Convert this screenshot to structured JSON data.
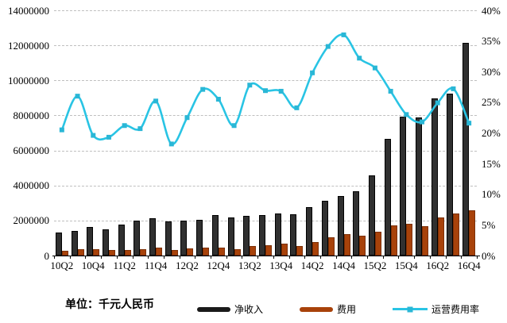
{
  "chart_data": {
    "type": "combo",
    "title": "",
    "footnote": "单位：千元人民币",
    "categories": [
      "10Q2",
      "10Q3",
      "10Q4",
      "11Q1",
      "11Q2",
      "11Q3",
      "11Q4",
      "12Q1",
      "12Q2",
      "12Q3",
      "12Q4",
      "13Q1",
      "13Q2",
      "13Q3",
      "13Q4",
      "14Q1",
      "14Q2",
      "14Q3",
      "14Q4",
      "15Q1",
      "15Q2",
      "15Q3",
      "15Q4",
      "16Q1",
      "16Q2",
      "16Q3",
      "16Q4"
    ],
    "x_labels_shown": [
      "10Q2",
      "10Q4",
      "11Q2",
      "11Q4",
      "12Q2",
      "12Q4",
      "13Q2",
      "13Q4",
      "14Q2",
      "14Q4",
      "15Q2",
      "15Q4",
      "16Q2",
      "16Q4"
    ],
    "series": [
      {
        "name": "净收入",
        "type": "bar",
        "axis": "left",
        "color": "#303030",
        "border_color": "#000000",
        "values": [
          1300000,
          1400000,
          1620000,
          1510000,
          1750000,
          2000000,
          2110000,
          1960000,
          2000000,
          2050000,
          2290000,
          2160000,
          2260000,
          2330000,
          2410000,
          2370000,
          2760000,
          3120000,
          3420000,
          3660000,
          4560000,
          6670000,
          7930000,
          7900000,
          8960000,
          9230000,
          12150000
        ]
      },
      {
        "name": "费用",
        "type": "bar",
        "axis": "left",
        "color": "#a8420a",
        "border_color": "#7c3007",
        "values": [
          270000,
          340000,
          360000,
          310000,
          330000,
          360000,
          450000,
          330000,
          400000,
          450000,
          460000,
          370000,
          540000,
          610000,
          660000,
          540000,
          770000,
          1040000,
          1220000,
          1140000,
          1370000,
          1700000,
          1790000,
          1670000,
          2190000,
          2420000,
          2570000
        ]
      },
      {
        "name": "运营费用率",
        "type": "line",
        "axis": "right",
        "color": "#29c4e4",
        "marker_color": "#2ab7d6",
        "smooth": true,
        "values": [
          20.5,
          26.0,
          19.6,
          19.3,
          21.2,
          20.7,
          25.2,
          18.2,
          22.5,
          27.1,
          25.5,
          21.2,
          27.8,
          26.9,
          26.8,
          24.1,
          29.8,
          34.1,
          36.0,
          32.2,
          30.6,
          26.8,
          23.0,
          21.8,
          24.9,
          27.2,
          21.6
        ]
      }
    ],
    "left_axis": {
      "min": 0,
      "max": 14000000,
      "step": 2000000,
      "ticks": [
        "0",
        "2000000",
        "4000000",
        "6000000",
        "8000000",
        "10000000",
        "12000000",
        "14000000"
      ]
    },
    "right_axis": {
      "min": 0,
      "max": 40,
      "step": 5,
      "ticks": [
        "0%",
        "5%",
        "10%",
        "15%",
        "20%",
        "25%",
        "30%",
        "35%",
        "40%"
      ]
    },
    "grid": "horizontal-dashed",
    "legend_position": "bottom"
  }
}
